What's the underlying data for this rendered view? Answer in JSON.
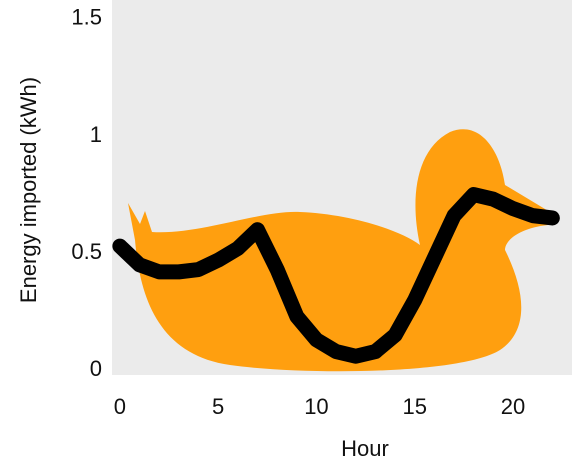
{
  "chart_data": {
    "type": "line",
    "x_label": "Hour",
    "y_label": "Energy imported (kWh)",
    "x": [
      0,
      1,
      2,
      3,
      4,
      5,
      6,
      7,
      8,
      9,
      10,
      11,
      12,
      13,
      14,
      15,
      16,
      17,
      18,
      19,
      20,
      21,
      22
    ],
    "series": [
      {
        "color": "#000000",
        "values": [
          0.53,
          0.45,
          0.42,
          0.42,
          0.43,
          0.47,
          0.52,
          0.6,
          0.43,
          0.23,
          0.13,
          0.08,
          0.06,
          0.08,
          0.15,
          0.3,
          0.48,
          0.66,
          0.75,
          0.73,
          0.69,
          0.66,
          0.65
        ]
      }
    ],
    "xlim": [
      -0.4,
      23
    ],
    "ylim": [
      -0.02,
      1.58
    ],
    "xticks": [
      0,
      5,
      10,
      15,
      20
    ],
    "yticks": [
      0,
      0.5,
      1,
      1.5
    ]
  }
}
